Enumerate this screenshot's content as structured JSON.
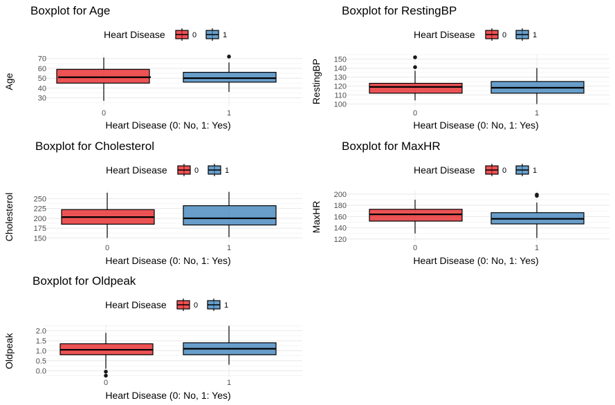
{
  "chart_data": [
    {
      "type": "boxplot",
      "title": "Boxplot for Age",
      "xlabel": "Heart Disease (0: No, 1: Yes)",
      "ylabel": "Age",
      "legend_title": "Heart Disease",
      "legend_position": "top",
      "categories": [
        "0",
        "1"
      ],
      "colors": [
        "#E41A1C",
        "#377EB8"
      ],
      "yticks": [
        30,
        40,
        50,
        60,
        70
      ],
      "ylim": [
        22,
        74
      ],
      "boxes": [
        {
          "category": "0",
          "whisker_low": 27,
          "q1": 45,
          "median": 51,
          "q3": 59,
          "whisker_high": 71,
          "outliers": []
        },
        {
          "category": "1",
          "whisker_low": 36,
          "q1": 46,
          "median": 50,
          "q3": 56,
          "whisker_high": 66,
          "outliers": [
            72
          ]
        }
      ]
    },
    {
      "type": "boxplot",
      "title": "Boxplot for RestingBP",
      "xlabel": "Heart Disease (0: No, 1: Yes)",
      "ylabel": "RestingBP",
      "legend_title": "Heart Disease",
      "legend_position": "top",
      "categories": [
        "0",
        "1"
      ],
      "colors": [
        "#E41A1C",
        "#377EB8"
      ],
      "yticks": [
        100,
        110,
        120,
        130,
        140,
        150
      ],
      "ylim": [
        98,
        155
      ],
      "boxes": [
        {
          "category": "0",
          "whisker_low": 104,
          "q1": 112,
          "median": 119,
          "q3": 123,
          "whisker_high": 137,
          "outliers": [
            141,
            152
          ]
        },
        {
          "category": "1",
          "whisker_low": 100,
          "q1": 112,
          "median": 118,
          "q3": 125,
          "whisker_high": 140,
          "outliers": []
        }
      ]
    },
    {
      "type": "boxplot",
      "title": "Boxplot for Cholesterol",
      "xlabel": "Heart Disease (0: No, 1: Yes)",
      "ylabel": "Cholesterol",
      "legend_title": "Heart Disease",
      "legend_position": "top",
      "categories": [
        "0",
        "1"
      ],
      "colors": [
        "#E41A1C",
        "#377EB8"
      ],
      "yticks": [
        150,
        175,
        200,
        225,
        250
      ],
      "ylim": [
        140,
        270
      ],
      "boxes": [
        {
          "category": "0",
          "whisker_low": 150,
          "q1": 185,
          "median": 203,
          "q3": 222,
          "whisker_high": 265,
          "outliers": []
        },
        {
          "category": "1",
          "whisker_low": 152,
          "q1": 183,
          "median": 200,
          "q3": 232,
          "whisker_high": 267,
          "outliers": []
        }
      ]
    },
    {
      "type": "boxplot",
      "title": "Boxplot for MaxHR",
      "xlabel": "Heart Disease (0: No, 1: Yes)",
      "ylabel": "MaxHR",
      "legend_title": "Heart Disease",
      "legend_position": "top",
      "categories": [
        "0",
        "1"
      ],
      "colors": [
        "#E41A1C",
        "#377EB8"
      ],
      "yticks": [
        120,
        140,
        160,
        180,
        200
      ],
      "ylim": [
        115,
        206
      ],
      "boxes": [
        {
          "category": "0",
          "whisker_low": 130,
          "q1": 152,
          "median": 164,
          "q3": 173,
          "whisker_high": 190,
          "outliers": []
        },
        {
          "category": "1",
          "whisker_low": 122,
          "q1": 147,
          "median": 156,
          "q3": 167,
          "whisker_high": 185,
          "outliers": [
            197,
            199
          ]
        }
      ]
    },
    {
      "type": "boxplot",
      "title": "Boxplot for Oldpeak",
      "xlabel": "Heart Disease (0: No, 1: Yes)",
      "ylabel": "Oldpeak",
      "legend_title": "Heart Disease",
      "legend_position": "top",
      "categories": [
        "0",
        "1"
      ],
      "colors": [
        "#E41A1C",
        "#377EB8"
      ],
      "yticks": [
        0.0,
        0.5,
        1.0,
        1.5,
        2.0
      ],
      "ytick_labels": [
        "0.0",
        "0.5",
        "1.0",
        "1.5",
        "2.0"
      ],
      "ylim": [
        -0.3,
        2.3
      ],
      "boxes": [
        {
          "category": "0",
          "whisker_low": 0.1,
          "q1": 0.8,
          "median": 1.05,
          "q3": 1.35,
          "whisker_high": 1.9,
          "outliers": [
            -0.05,
            -0.25
          ]
        },
        {
          "category": "1",
          "whisker_low": 0.3,
          "q1": 0.8,
          "median": 1.1,
          "q3": 1.4,
          "whisker_high": 2.25,
          "outliers": []
        }
      ]
    }
  ]
}
